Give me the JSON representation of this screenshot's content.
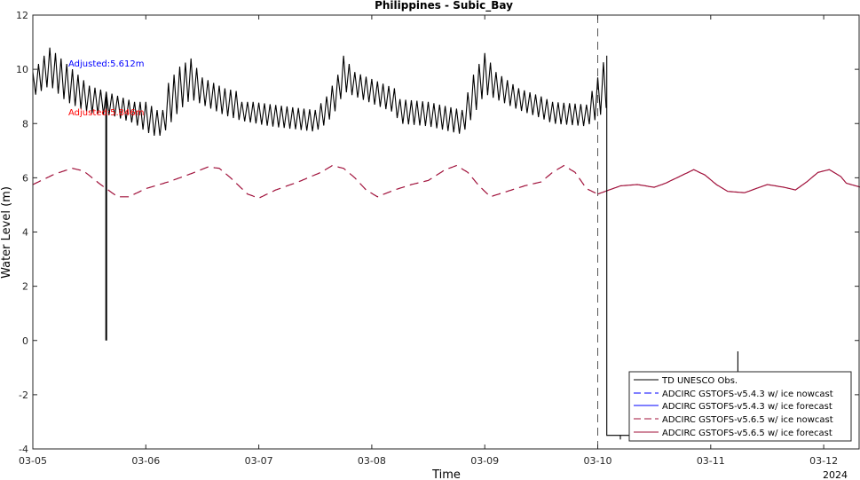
{
  "chart_data": {
    "type": "line",
    "title": "Philippines - Subic_Bay",
    "xlabel": "Time",
    "ylabel": "Water Level (m)",
    "x_ticks": [
      "03-05",
      "03-06",
      "03-07",
      "03-08",
      "03-09",
      "03-10",
      "03-11",
      "03-12"
    ],
    "x_year_label": "2024",
    "xlim": [
      0,
      7.33
    ],
    "ylim": [
      -4,
      12
    ],
    "y_ticks": [
      "-4",
      "-2",
      "0",
      "2",
      "4",
      "6",
      "8",
      "10",
      "12"
    ],
    "grid": false,
    "legend_position": "bottom-right",
    "nowcast_end_day": 5.0,
    "annotations": [
      {
        "text": "Adjusted:5.612m",
        "color": "#0000ff"
      },
      {
        "text": "Adjusted:5.846m",
        "color": "#ff0000"
      }
    ],
    "series": [
      {
        "name": "TD UNESCO Obs.",
        "color": "#000000",
        "style": "solid",
        "envelope_upper": [
          [
            0.0,
            9.9
          ],
          [
            0.15,
            10.8
          ],
          [
            0.3,
            10.2
          ],
          [
            0.5,
            9.4
          ],
          [
            0.7,
            9.1
          ],
          [
            0.9,
            8.8
          ],
          [
            1.0,
            8.8
          ],
          [
            1.1,
            8.5
          ],
          [
            1.15,
            8.5
          ],
          [
            1.2,
            9.5
          ],
          [
            1.3,
            10.1
          ],
          [
            1.4,
            10.4
          ],
          [
            1.5,
            9.7
          ],
          [
            1.7,
            9.3
          ],
          [
            1.8,
            9.2
          ],
          [
            1.85,
            8.8
          ],
          [
            1.95,
            8.8
          ],
          [
            2.3,
            8.6
          ],
          [
            2.5,
            8.5
          ],
          [
            2.6,
            9.0
          ],
          [
            2.7,
            9.8
          ],
          [
            2.75,
            10.5
          ],
          [
            2.85,
            9.9
          ],
          [
            3.2,
            9.3
          ],
          [
            3.25,
            8.9
          ],
          [
            3.5,
            8.8
          ],
          [
            3.8,
            8.5
          ],
          [
            3.9,
            9.8
          ],
          [
            4.0,
            10.6
          ],
          [
            4.1,
            9.9
          ],
          [
            4.3,
            9.3
          ],
          [
            4.5,
            9.0
          ],
          [
            4.6,
            8.8
          ],
          [
            4.9,
            8.7
          ],
          [
            5.0,
            9.7
          ],
          [
            5.08,
            10.6
          ]
        ],
        "envelope_lower": [
          [
            0.0,
            9.0
          ],
          [
            0.15,
            9.4
          ],
          [
            0.3,
            8.8
          ],
          [
            0.5,
            8.4
          ],
          [
            0.7,
            8.3
          ],
          [
            0.9,
            8.0
          ],
          [
            1.0,
            7.7
          ],
          [
            1.1,
            7.5
          ],
          [
            1.15,
            7.6
          ],
          [
            1.2,
            7.9
          ],
          [
            1.3,
            8.5
          ],
          [
            1.4,
            8.9
          ],
          [
            1.5,
            8.7
          ],
          [
            1.7,
            8.3
          ],
          [
            1.85,
            8.1
          ],
          [
            2.1,
            7.9
          ],
          [
            2.3,
            7.8
          ],
          [
            2.5,
            7.7
          ],
          [
            2.6,
            8.0
          ],
          [
            2.7,
            8.6
          ],
          [
            2.75,
            9.2
          ],
          [
            2.85,
            9.0
          ],
          [
            3.2,
            8.4
          ],
          [
            3.25,
            8.0
          ],
          [
            3.5,
            7.9
          ],
          [
            3.8,
            7.6
          ],
          [
            3.9,
            8.3
          ],
          [
            4.0,
            9.1
          ],
          [
            4.1,
            8.9
          ],
          [
            4.3,
            8.5
          ],
          [
            4.5,
            8.2
          ],
          [
            4.6,
            8.0
          ],
          [
            4.9,
            7.9
          ],
          [
            5.0,
            8.2
          ],
          [
            5.08,
            8.6
          ]
        ],
        "gaps": [
          {
            "segment": [
              [
                0.65,
                9.0
              ],
              [
                0.65,
                0.0
              ]
            ]
          },
          {
            "segment": [
              [
                5.08,
                10.5
              ],
              [
                5.08,
                -3.5
              ],
              [
                5.5,
                -3.5
              ]
            ]
          },
          {
            "segment": [
              [
                5.2,
                -3.5
              ],
              [
                5.2,
                -3.65
              ]
            ]
          },
          {
            "segment": [
              [
                6.24,
                -3.5
              ],
              [
                6.24,
                -0.4
              ]
            ]
          }
        ]
      },
      {
        "name": "ADCIRC GSTOFS-v5.4.3 w/ ice nowcast",
        "color": "#0000ff",
        "style": "dashed",
        "values": []
      },
      {
        "name": "ADCIRC GSTOFS-v5.4.3 w/ ice forecast",
        "color": "#0000ff",
        "style": "solid",
        "values": []
      },
      {
        "name": "ADCIRC GSTOFS-v5.6.5 w/ ice nowcast",
        "color": "#a0103a",
        "style": "dashed",
        "x_range": [
          0,
          5.0
        ]
      },
      {
        "name": "ADCIRC GSTOFS-v5.6.5 w/ ice forecast",
        "color": "#a0103a",
        "style": "solid",
        "x_range": [
          5.0,
          7.33
        ]
      }
    ],
    "model_curve_keypoints": [
      [
        0.0,
        5.75
      ],
      [
        0.2,
        6.15
      ],
      [
        0.35,
        6.35
      ],
      [
        0.45,
        6.25
      ],
      [
        0.6,
        5.75
      ],
      [
        0.75,
        5.3
      ],
      [
        0.85,
        5.3
      ],
      [
        1.0,
        5.6
      ],
      [
        1.2,
        5.85
      ],
      [
        1.4,
        6.15
      ],
      [
        1.55,
        6.4
      ],
      [
        1.65,
        6.35
      ],
      [
        1.75,
        6.0
      ],
      [
        1.9,
        5.4
      ],
      [
        2.0,
        5.25
      ],
      [
        2.15,
        5.55
      ],
      [
        2.35,
        5.85
      ],
      [
        2.55,
        6.2
      ],
      [
        2.65,
        6.45
      ],
      [
        2.75,
        6.35
      ],
      [
        2.85,
        6.0
      ],
      [
        2.95,
        5.55
      ],
      [
        3.05,
        5.3
      ],
      [
        3.2,
        5.55
      ],
      [
        3.35,
        5.75
      ],
      [
        3.5,
        5.9
      ],
      [
        3.65,
        6.3
      ],
      [
        3.75,
        6.45
      ],
      [
        3.85,
        6.2
      ],
      [
        3.95,
        5.7
      ],
      [
        4.05,
        5.3
      ],
      [
        4.2,
        5.5
      ],
      [
        4.35,
        5.7
      ],
      [
        4.5,
        5.85
      ],
      [
        4.6,
        6.2
      ],
      [
        4.7,
        6.45
      ],
      [
        4.8,
        6.2
      ],
      [
        4.9,
        5.6
      ],
      [
        5.0,
        5.4
      ],
      [
        5.1,
        5.55
      ],
      [
        5.2,
        5.7
      ],
      [
        5.35,
        5.75
      ],
      [
        5.5,
        5.65
      ],
      [
        5.6,
        5.8
      ],
      [
        5.75,
        6.1
      ],
      [
        5.85,
        6.3
      ],
      [
        5.95,
        6.1
      ],
      [
        6.05,
        5.75
      ],
      [
        6.15,
        5.5
      ],
      [
        6.3,
        5.45
      ],
      [
        6.4,
        5.6
      ],
      [
        6.5,
        5.75
      ],
      [
        6.65,
        5.65
      ],
      [
        6.75,
        5.55
      ],
      [
        6.85,
        5.85
      ],
      [
        6.95,
        6.2
      ],
      [
        7.05,
        6.3
      ],
      [
        7.15,
        6.05
      ],
      [
        7.2,
        5.8
      ],
      [
        7.33,
        5.65
      ]
    ],
    "model_curve_extra": [
      [
        5.55,
        5.7
      ],
      [
        5.7,
        6.3
      ],
      [
        5.85,
        6.1
      ],
      [
        5.95,
        5.55
      ],
      [
        6.05,
        5.45
      ],
      [
        6.2,
        5.65
      ],
      [
        6.3,
        5.8
      ],
      [
        6.45,
        5.85
      ],
      [
        6.6,
        5.65
      ],
      [
        6.75,
        5.7
      ],
      [
        6.9,
        6.05
      ],
      [
        7.0,
        6.25
      ],
      [
        7.15,
        6.0
      ],
      [
        7.33,
        5.65
      ]
    ]
  }
}
